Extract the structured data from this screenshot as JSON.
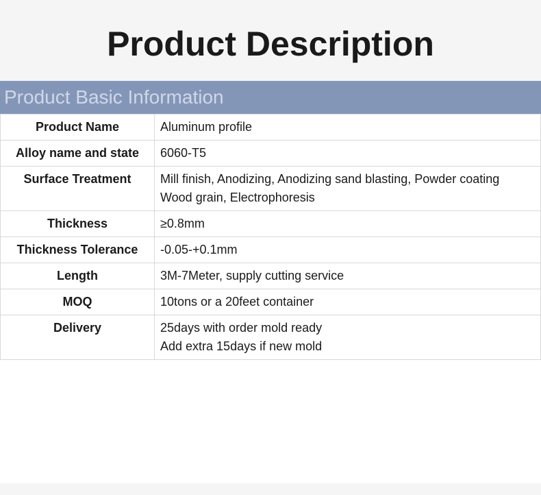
{
  "page_title": "Product Description",
  "section_header": "Product Basic Information",
  "table": {
    "type": "table",
    "background_color": "#ffffff",
    "border_color": "#d8d8d8",
    "header_bg": "#8496b8",
    "header_text_color": "#d0d8e8",
    "label_fontweight": "700",
    "value_fontweight": "400",
    "fontsize": 18,
    "label_col_width": 225,
    "rows": [
      {
        "label": "Product Name",
        "value": "Aluminum profile"
      },
      {
        "label": "Alloy name and state",
        "value": "6060-T5"
      },
      {
        "label": "Surface Treatment",
        "value": "Mill finish, Anodizing, Anodizing sand blasting, Powder coating\nWood grain, Electrophoresis"
      },
      {
        "label": "Thickness",
        "value": "≥0.8mm"
      },
      {
        "label": "Thickness Tolerance",
        "value": "-0.05-+0.1mm"
      },
      {
        "label": "Length",
        "value": "3M-7Meter, supply cutting service"
      },
      {
        "label": "MOQ",
        "value": "10tons or a 20feet container"
      },
      {
        "label": "Delivery",
        "value": "25days with order mold ready\nAdd extra 15days if new mold"
      }
    ]
  },
  "colors": {
    "page_bg": "#f5f5f5",
    "title_color": "#1a1a1a",
    "text_color": "#1a1a1a"
  }
}
